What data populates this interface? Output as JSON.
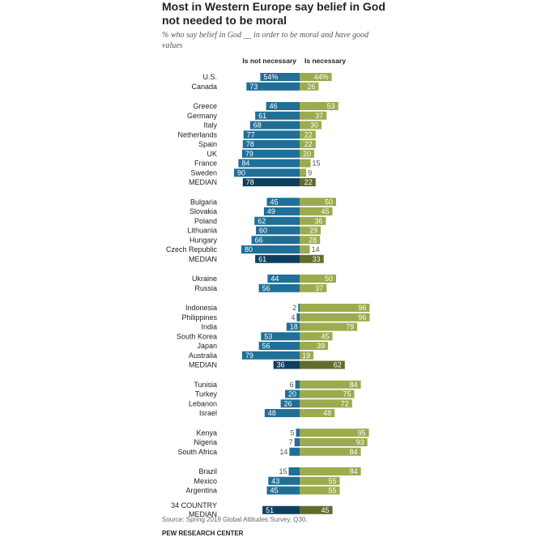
{
  "title": "Most in Western Europe say belief in God not needed to be moral",
  "subtitle": "% who say belief in God __ in order to be moral and have good values",
  "source": "Source: Spring 2019 Global Attitudes Survey. Q30.",
  "footer": "PEW RESEARCH CENTER",
  "colors": {
    "not_necessary": "#1f6f97",
    "necessary": "#9bab4d",
    "not_necessary_median": "#0f3f5f",
    "necessary_median": "#5f6d2c"
  },
  "chart_data": {
    "type": "bar",
    "layout": "diverging-horizontal",
    "legend": [
      "Is not necessary",
      "Is necessary"
    ],
    "groups": [
      {
        "rows": [
          {
            "label": "U.S.",
            "not_necessary": "54%",
            "necessary": "44%"
          },
          {
            "label": "Canada",
            "not_necessary": 73,
            "necessary": 26
          }
        ]
      },
      {
        "rows": [
          {
            "label": "Greece",
            "not_necessary": 46,
            "necessary": 53
          },
          {
            "label": "Germany",
            "not_necessary": 61,
            "necessary": 37
          },
          {
            "label": "Italy",
            "not_necessary": 68,
            "necessary": 30
          },
          {
            "label": "Netherlands",
            "not_necessary": 77,
            "necessary": 22
          },
          {
            "label": "Spain",
            "not_necessary": 78,
            "necessary": 22
          },
          {
            "label": "UK",
            "not_necessary": 79,
            "necessary": 20
          },
          {
            "label": "France",
            "not_necessary": 84,
            "necessary": 15
          },
          {
            "label": "Sweden",
            "not_necessary": 90,
            "necessary": 9
          },
          {
            "label": "MEDIAN",
            "not_necessary": 78,
            "necessary": 22,
            "median": true
          }
        ]
      },
      {
        "rows": [
          {
            "label": "Bulgaria",
            "not_necessary": 45,
            "necessary": 50
          },
          {
            "label": "Slovakia",
            "not_necessary": 49,
            "necessary": 45
          },
          {
            "label": "Poland",
            "not_necessary": 62,
            "necessary": 36
          },
          {
            "label": "Lithuania",
            "not_necessary": 60,
            "necessary": 29
          },
          {
            "label": "Hungary",
            "not_necessary": 66,
            "necessary": 28
          },
          {
            "label": "Czech Republic",
            "not_necessary": 80,
            "necessary": 14
          },
          {
            "label": "MEDIAN",
            "not_necessary": 61,
            "necessary": 33,
            "median": true
          }
        ]
      },
      {
        "rows": [
          {
            "label": "Ukraine",
            "not_necessary": 44,
            "necessary": 50
          },
          {
            "label": "Russia",
            "not_necessary": 56,
            "necessary": 37
          }
        ]
      },
      {
        "rows": [
          {
            "label": "Indonesia",
            "not_necessary": 2,
            "necessary": 96
          },
          {
            "label": "Philippines",
            "not_necessary": 4,
            "necessary": 96
          },
          {
            "label": "India",
            "not_necessary": 18,
            "necessary": 79
          },
          {
            "label": "South Korea",
            "not_necessary": 53,
            "necessary": 45
          },
          {
            "label": "Japan",
            "not_necessary": 56,
            "necessary": 39
          },
          {
            "label": "Australia",
            "not_necessary": 79,
            "necessary": 19
          },
          {
            "label": "MEDIAN",
            "not_necessary": 36,
            "necessary": 62,
            "median": true
          }
        ]
      },
      {
        "rows": [
          {
            "label": "Tunisia",
            "not_necessary": 6,
            "necessary": 84
          },
          {
            "label": "Turkey",
            "not_necessary": 20,
            "necessary": 75
          },
          {
            "label": "Lebanon",
            "not_necessary": 26,
            "necessary": 72
          },
          {
            "label": "Israel",
            "not_necessary": 48,
            "necessary": 48
          }
        ]
      },
      {
        "rows": [
          {
            "label": "Kenya",
            "not_necessary": 5,
            "necessary": 95
          },
          {
            "label": "Nigeria",
            "not_necessary": 7,
            "necessary": 93
          },
          {
            "label": "South Africa",
            "not_necessary": 14,
            "necessary": 84
          }
        ]
      },
      {
        "rows": [
          {
            "label": "Brazil",
            "not_necessary": 15,
            "necessary": 84
          },
          {
            "label": "Mexico",
            "not_necessary": 43,
            "necessary": 55
          },
          {
            "label": "Argentina",
            "not_necessary": 45,
            "necessary": 55
          }
        ]
      },
      {
        "rows": [
          {
            "label": "34 COUNTRY MEDIAN",
            "label_lines": [
              "34 COUNTRY",
              "MEDIAN"
            ],
            "not_necessary": 51,
            "necessary": 45,
            "median": true
          }
        ]
      }
    ]
  }
}
